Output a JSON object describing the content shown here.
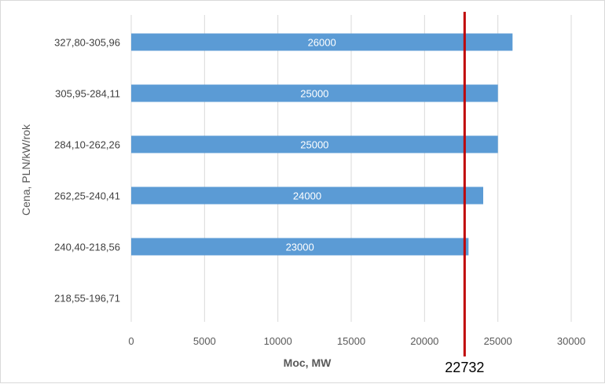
{
  "chart_data": {
    "type": "bar",
    "orientation": "horizontal",
    "categories": [
      "327,80-305,96",
      "305,95-284,11",
      "284,10-262,26",
      "262,25-240,41",
      "240,40-218,56",
      "218,55-196,71"
    ],
    "values": [
      26000,
      25000,
      25000,
      24000,
      23000,
      null
    ],
    "data_labels": [
      "26000",
      "25000",
      "25000",
      "24000",
      "23000",
      ""
    ],
    "xlabel": "Moc, MW",
    "ylabel": "Cena, PLN/kW/rok",
    "xlim": [
      0,
      30000
    ],
    "xticks": [
      0,
      5000,
      10000,
      15000,
      20000,
      25000,
      30000
    ],
    "grid": "vertical",
    "bar_color": "#5b9bd5",
    "reference_line": {
      "value": 22732,
      "label": "22732",
      "color": "#c00000"
    }
  }
}
